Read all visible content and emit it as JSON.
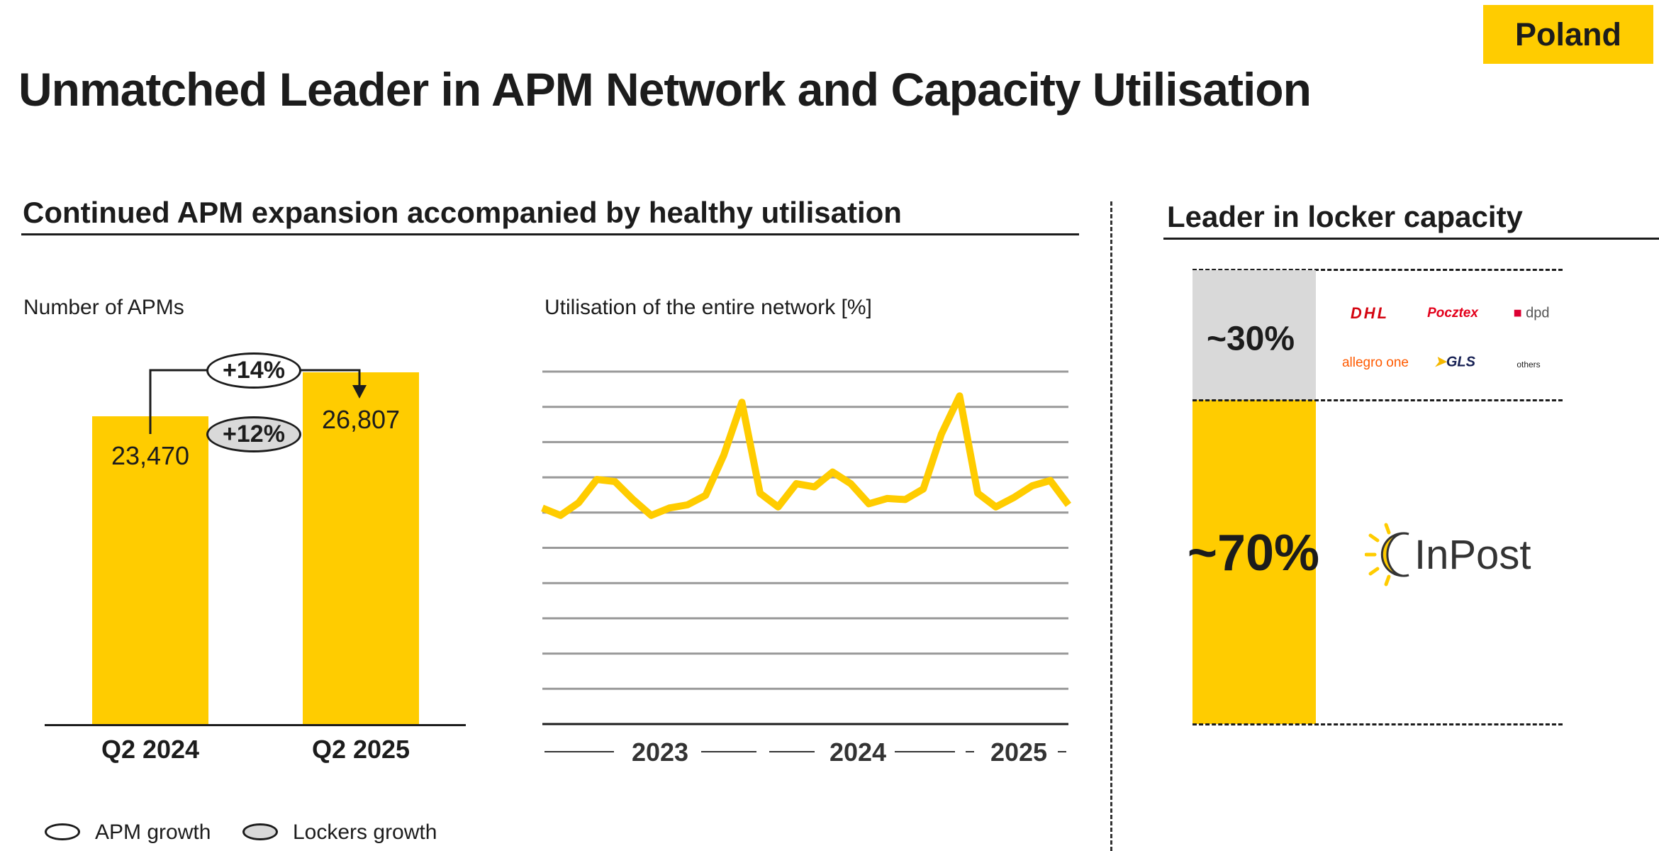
{
  "badge": "Poland",
  "title": "Unmatched Leader in APM Network and Capacity Utilisation",
  "left_heading": "Continued APM expansion accompanied by healthy utilisation",
  "right_heading": "Leader in locker capacity",
  "legend": {
    "apm_growth": "APM growth",
    "lockers_growth": "Lockers growth"
  },
  "colors": {
    "accent": "#FFCC00",
    "grey": "#d9d9d9",
    "text": "#1c1c1c"
  },
  "chart_data": [
    {
      "type": "bar",
      "title": "Number of APMs",
      "categories": [
        "Q2 2024",
        "Q2 2025"
      ],
      "values": [
        23470,
        26807
      ],
      "value_labels": [
        "23,470",
        "26,807"
      ],
      "ylim": [
        0,
        30000
      ],
      "annotations": {
        "apm_growth": "+14%",
        "lockers_growth": "+12%"
      }
    },
    {
      "type": "line",
      "title": "Utilisation of the entire network [%]",
      "x_labels": [
        "2023",
        "2024",
        "2025"
      ],
      "ylim": [
        0,
        10
      ],
      "gridlines": 10,
      "values": [
        6.13,
        5.92,
        6.28,
        6.94,
        6.88,
        6.37,
        5.92,
        6.13,
        6.22,
        6.49,
        7.63,
        9.13,
        6.55,
        6.16,
        6.82,
        6.73,
        7.15,
        6.82,
        6.25,
        6.4,
        6.37,
        6.67,
        8.23,
        9.31,
        6.55,
        6.16,
        6.43,
        6.76,
        6.91,
        6.22
      ]
    },
    {
      "type": "bar",
      "title": "Leader in locker capacity",
      "series": [
        {
          "name": "Others",
          "value": 30,
          "label": "~30%"
        },
        {
          "name": "InPost",
          "value": 70,
          "label": "~70%"
        }
      ],
      "competitors": [
        "DHL",
        "Pocztex",
        "dpd",
        "allegro one",
        "GLS",
        "others"
      ],
      "leader": "InPost"
    }
  ]
}
